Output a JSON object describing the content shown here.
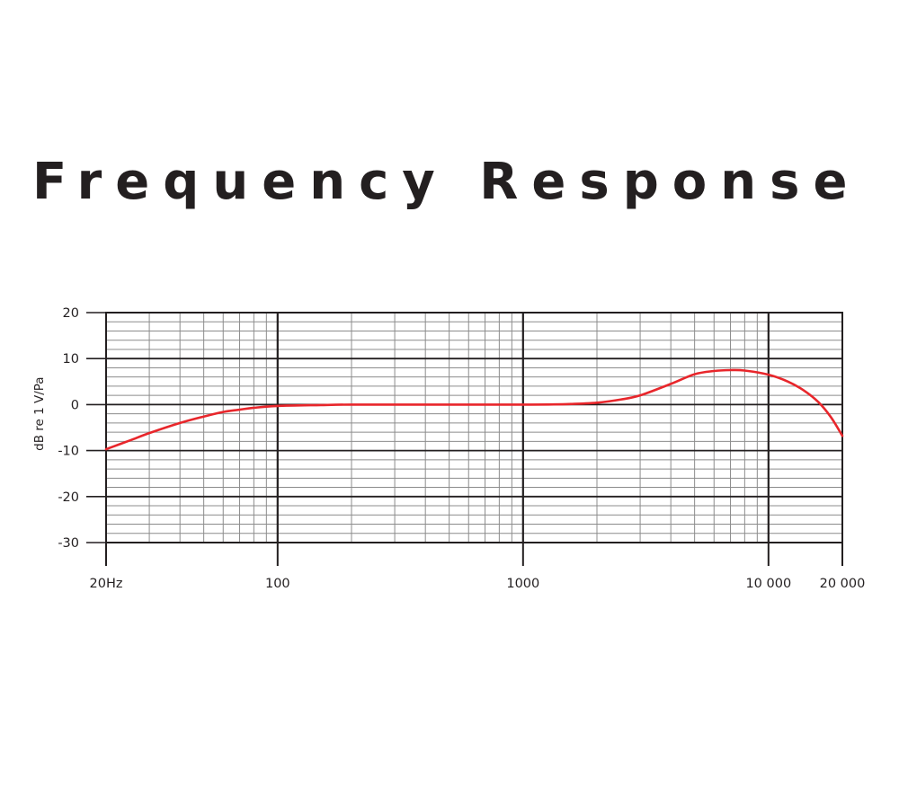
{
  "chart_data": {
    "type": "line",
    "title": "Frequency Response",
    "xlabel": "",
    "ylabel": "dB re 1 V/Pa",
    "x_scale": "log",
    "xlim": [
      20,
      20000
    ],
    "ylim": [
      -30,
      20
    ],
    "x_ticks": [
      {
        "value": 20,
        "label": "20Hz"
      },
      {
        "value": 100,
        "label": "100"
      },
      {
        "value": 1000,
        "label": "1000"
      },
      {
        "value": 10000,
        "label": "10 000"
      },
      {
        "value": 20000,
        "label": "20 000"
      }
    ],
    "y_ticks": [
      {
        "value": 20,
        "label": "20"
      },
      {
        "value": 10,
        "label": "10"
      },
      {
        "value": 0,
        "label": "0"
      },
      {
        "value": -10,
        "label": "-10"
      },
      {
        "value": -20,
        "label": "-20"
      },
      {
        "value": -30,
        "label": "-30"
      }
    ],
    "grid": true,
    "series": [
      {
        "name": "",
        "color": "#e8262b",
        "x": [
          20,
          25,
          30,
          40,
          50,
          60,
          70,
          80,
          100,
          150,
          200,
          300,
          500,
          1000,
          1500,
          2000,
          2500,
          3000,
          4000,
          5000,
          6000,
          7000,
          8000,
          10000,
          12000,
          14000,
          16000,
          18000,
          20000
        ],
        "y": [
          -9.7,
          -7.8,
          -6.2,
          -4.0,
          -2.6,
          -1.6,
          -1.1,
          -0.7,
          -0.3,
          -0.1,
          0,
          0,
          0,
          0,
          0.1,
          0.4,
          1.1,
          2.0,
          4.5,
          6.6,
          7.3,
          7.5,
          7.4,
          6.5,
          5.0,
          3.0,
          0.5,
          -2.8,
          -6.8
        ]
      }
    ]
  },
  "colors": {
    "grid_major": "#231f20",
    "grid_minor": "#8c8c8c",
    "curve": "#e8262b",
    "text": "#231f20"
  }
}
